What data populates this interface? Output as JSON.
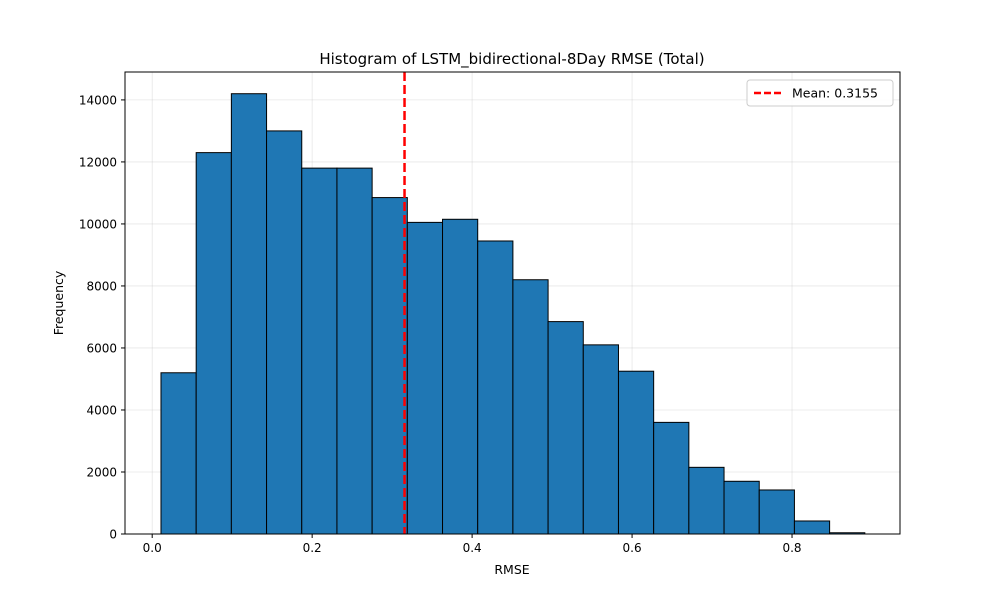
{
  "chart_data": {
    "type": "bar",
    "title": "Histogram of LSTM_bidirectional-8Day RMSE (Total)",
    "xlabel": "RMSE",
    "ylabel": "Frequency",
    "xlim": [
      -0.034,
      0.935
    ],
    "ylim": [
      0,
      14900
    ],
    "xticks": [
      0.0,
      0.2,
      0.4,
      0.6,
      0.8
    ],
    "xtick_labels": [
      "0.0",
      "0.2",
      "0.4",
      "0.6",
      "0.8"
    ],
    "yticks": [
      0,
      2000,
      4000,
      6000,
      8000,
      10000,
      12000,
      14000
    ],
    "ytick_labels": [
      "0",
      "2000",
      "4000",
      "6000",
      "8000",
      "10000",
      "12000",
      "14000"
    ],
    "grid": true,
    "bar_color": "#1f77b4",
    "bar_edge_color": "#000000",
    "bins": [
      {
        "x0": 0.011,
        "x1": 0.055,
        "count": 5200
      },
      {
        "x0": 0.055,
        "x1": 0.099,
        "count": 12300
      },
      {
        "x0": 0.099,
        "x1": 0.143,
        "count": 14200
      },
      {
        "x0": 0.143,
        "x1": 0.187,
        "count": 13000
      },
      {
        "x0": 0.187,
        "x1": 0.231,
        "count": 11800
      },
      {
        "x0": 0.231,
        "x1": 0.275,
        "count": 11800
      },
      {
        "x0": 0.275,
        "x1": 0.319,
        "count": 10850
      },
      {
        "x0": 0.319,
        "x1": 0.363,
        "count": 10050
      },
      {
        "x0": 0.363,
        "x1": 0.407,
        "count": 10150
      },
      {
        "x0": 0.407,
        "x1": 0.451,
        "count": 9450
      },
      {
        "x0": 0.451,
        "x1": 0.495,
        "count": 8200
      },
      {
        "x0": 0.495,
        "x1": 0.539,
        "count": 6850
      },
      {
        "x0": 0.539,
        "x1": 0.583,
        "count": 6100
      },
      {
        "x0": 0.583,
        "x1": 0.627,
        "count": 5250
      },
      {
        "x0": 0.627,
        "x1": 0.671,
        "count": 3600
      },
      {
        "x0": 0.671,
        "x1": 0.715,
        "count": 2150
      },
      {
        "x0": 0.715,
        "x1": 0.759,
        "count": 1700
      },
      {
        "x0": 0.759,
        "x1": 0.803,
        "count": 1420
      },
      {
        "x0": 0.803,
        "x1": 0.847,
        "count": 420
      },
      {
        "x0": 0.847,
        "x1": 0.891,
        "count": 40
      }
    ],
    "mean_line": {
      "value": 0.3155,
      "color": "#ff0000",
      "style": "dashed"
    },
    "legend": {
      "position": "top-right",
      "entries": [
        {
          "label": "Mean: 0.3155",
          "color": "#ff0000",
          "style": "dashed"
        }
      ]
    }
  }
}
